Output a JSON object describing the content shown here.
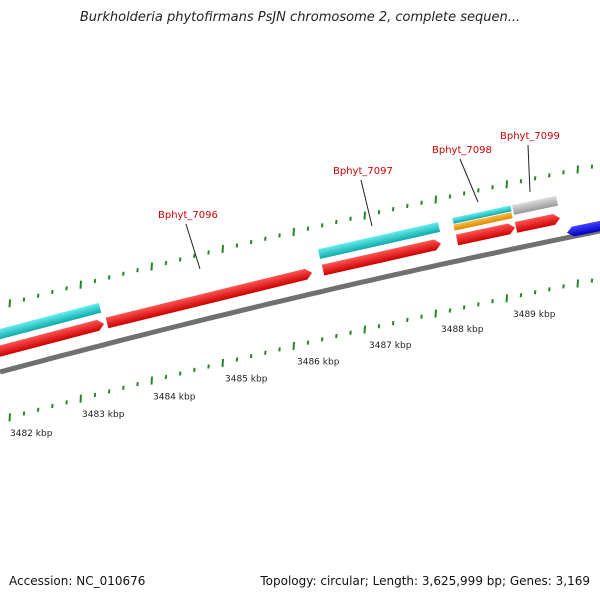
{
  "title": "Burkholderia phytofirmans PsJN chromosome 2, complete sequen...",
  "accession_text": "Accession: NC_010676",
  "summary_text": "Topology: circular; Length: 3,625,999 bp; Genes: 3,169",
  "colors": {
    "cds": "#ee0000",
    "gene_cyan": "#22cccc",
    "orange": "#ee9900",
    "grey": "#bbbbbb",
    "blue": "#0000dd",
    "backbone": "#808080",
    "tick": "#228822",
    "label": "#cc0000"
  },
  "genes": [
    {
      "name": "Bphyt_7096"
    },
    {
      "name": "Bphyt_7097"
    },
    {
      "name": "Bphyt_7098"
    },
    {
      "name": "Bphyt_7099"
    }
  ],
  "kbp_labels": [
    "3482 kbp",
    "3483 kbp",
    "3484 kbp",
    "3485 kbp",
    "3486 kbp",
    "3487 kbp",
    "3488 kbp",
    "3489 kbp"
  ]
}
